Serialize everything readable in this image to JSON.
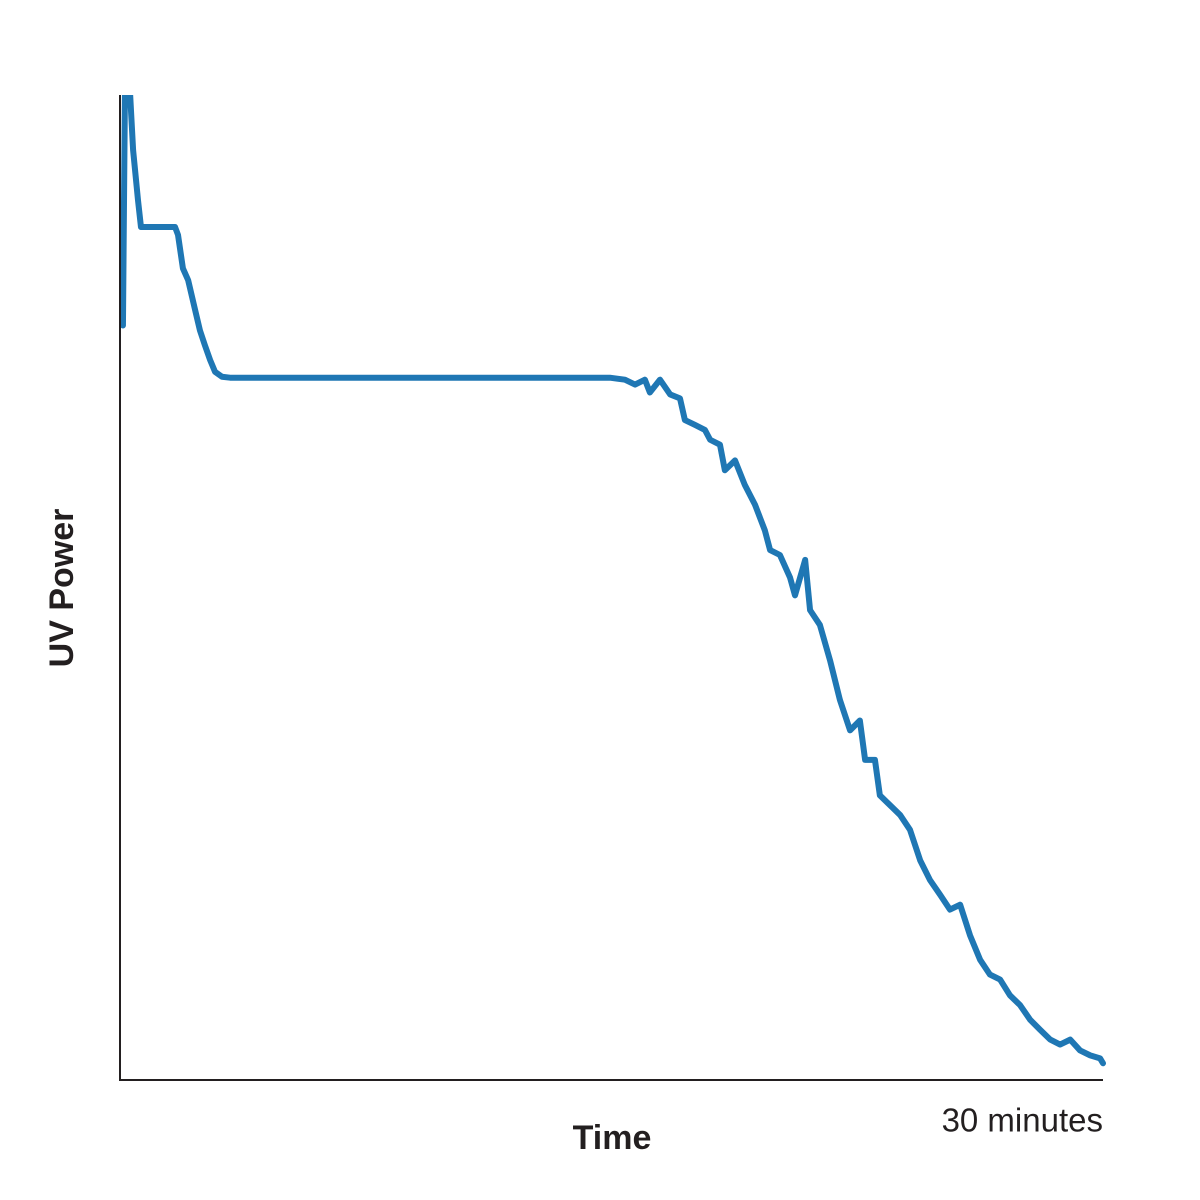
{
  "chart_data": {
    "type": "line",
    "x_label": "Time",
    "y_label": "UV Power",
    "xlim": [
      0,
      30
    ],
    "ylim": [
      0,
      100
    ],
    "xticks": [
      {
        "value": 30,
        "label": "30 minutes"
      }
    ],
    "x": [
      0.09,
      0.15,
      0.31,
      0.4,
      0.55,
      0.64,
      1.68,
      1.77,
      1.92,
      2.08,
      2.29,
      2.44,
      2.59,
      2.75,
      2.9,
      3.11,
      3.36,
      14.34,
      14.95,
      15.41,
      15.72,
      16.02,
      16.17,
      16.48,
      16.79,
      17.09,
      17.24,
      17.55,
      17.85,
      18.01,
      18.31,
      18.46,
      18.77,
      19.07,
      19.38,
      19.68,
      19.84,
      20.14,
      20.45,
      20.6,
      20.91,
      21.06,
      21.36,
      21.67,
      21.97,
      22.28,
      22.58,
      22.74,
      23.04,
      23.19,
      23.5,
      23.81,
      24.11,
      24.42,
      24.72,
      25.03,
      25.33,
      25.64,
      25.94,
      26.25,
      26.55,
      26.86,
      27.16,
      27.47,
      27.78,
      28.08,
      28.39,
      28.69,
      29.0,
      29.3,
      29.61,
      29.91,
      30.0
    ],
    "series": [
      {
        "color": "#1f77b4",
        "values": [
          76.6,
          100,
          100,
          94.4,
          89.3,
          86.6,
          86.6,
          85.8,
          82.4,
          81.2,
          78.2,
          76.1,
          74.6,
          73.1,
          71.9,
          71.4,
          71.3,
          71.3,
          71.3,
          71.1,
          70.6,
          71.1,
          69.8,
          71.1,
          69.6,
          69.2,
          67.0,
          66.5,
          66.0,
          65.0,
          64.5,
          61.9,
          62.9,
          60.4,
          58.4,
          55.8,
          53.8,
          53.3,
          51.0,
          49.2,
          52.8,
          47.7,
          46.2,
          42.6,
          38.6,
          35.5,
          36.5,
          32.5,
          32.5,
          28.9,
          27.9,
          26.9,
          25.4,
          22.3,
          20.3,
          18.8,
          17.3,
          17.8,
          14.7,
          12.2,
          10.7,
          10.2,
          8.6,
          7.6,
          6.1,
          5.1,
          4.1,
          3.6,
          4.1,
          3.0,
          2.5,
          2.2,
          1.7
        ]
      }
    ]
  }
}
